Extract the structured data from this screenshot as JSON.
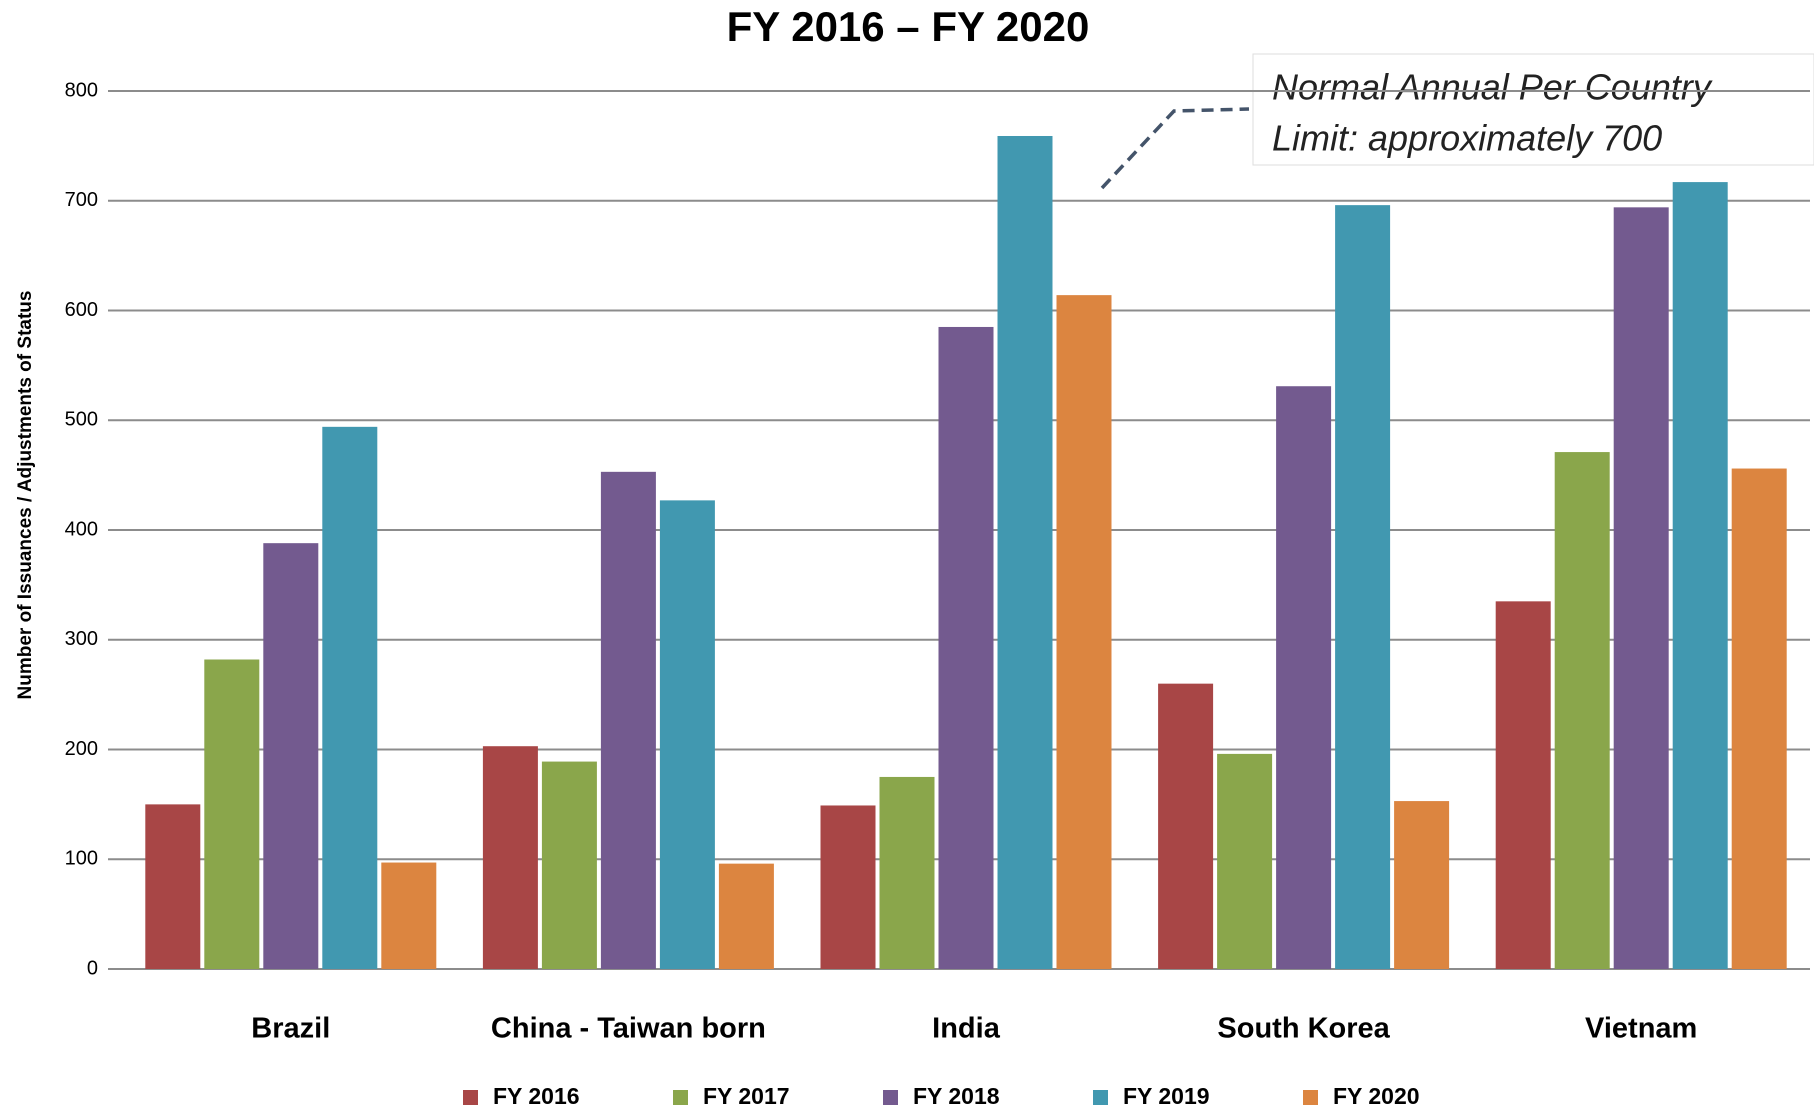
{
  "chart_data": {
    "type": "bar",
    "title": "FY 2016 – FY 2020",
    "y_label": "Number of Issuances / Adjustments of Status",
    "annotation": [
      "Normal Annual Per Country",
      "Limit: approximately 700"
    ],
    "categories": [
      "Brazil",
      "China - Taiwan born",
      "India",
      "South Korea",
      "Vietnam"
    ],
    "series": [
      {
        "name": "FY 2016",
        "color": "#a84646",
        "values": [
          150,
          203,
          149,
          260,
          335
        ]
      },
      {
        "name": "FY 2017",
        "color": "#8aa64b",
        "values": [
          282,
          189,
          175,
          196,
          471
        ]
      },
      {
        "name": "FY 2018",
        "color": "#735a8f",
        "values": [
          388,
          453,
          585,
          531,
          694
        ]
      },
      {
        "name": "FY 2019",
        "color": "#4198b0",
        "values": [
          494,
          427,
          759,
          696,
          717
        ]
      },
      {
        "name": "FY 2020",
        "color": "#dc8540",
        "values": [
          97,
          96,
          614,
          153,
          456
        ]
      }
    ],
    "ylim": [
      0,
      800
    ],
    "yticks": [
      0,
      100,
      200,
      300,
      400,
      500,
      600,
      700,
      800
    ],
    "grid": true
  }
}
